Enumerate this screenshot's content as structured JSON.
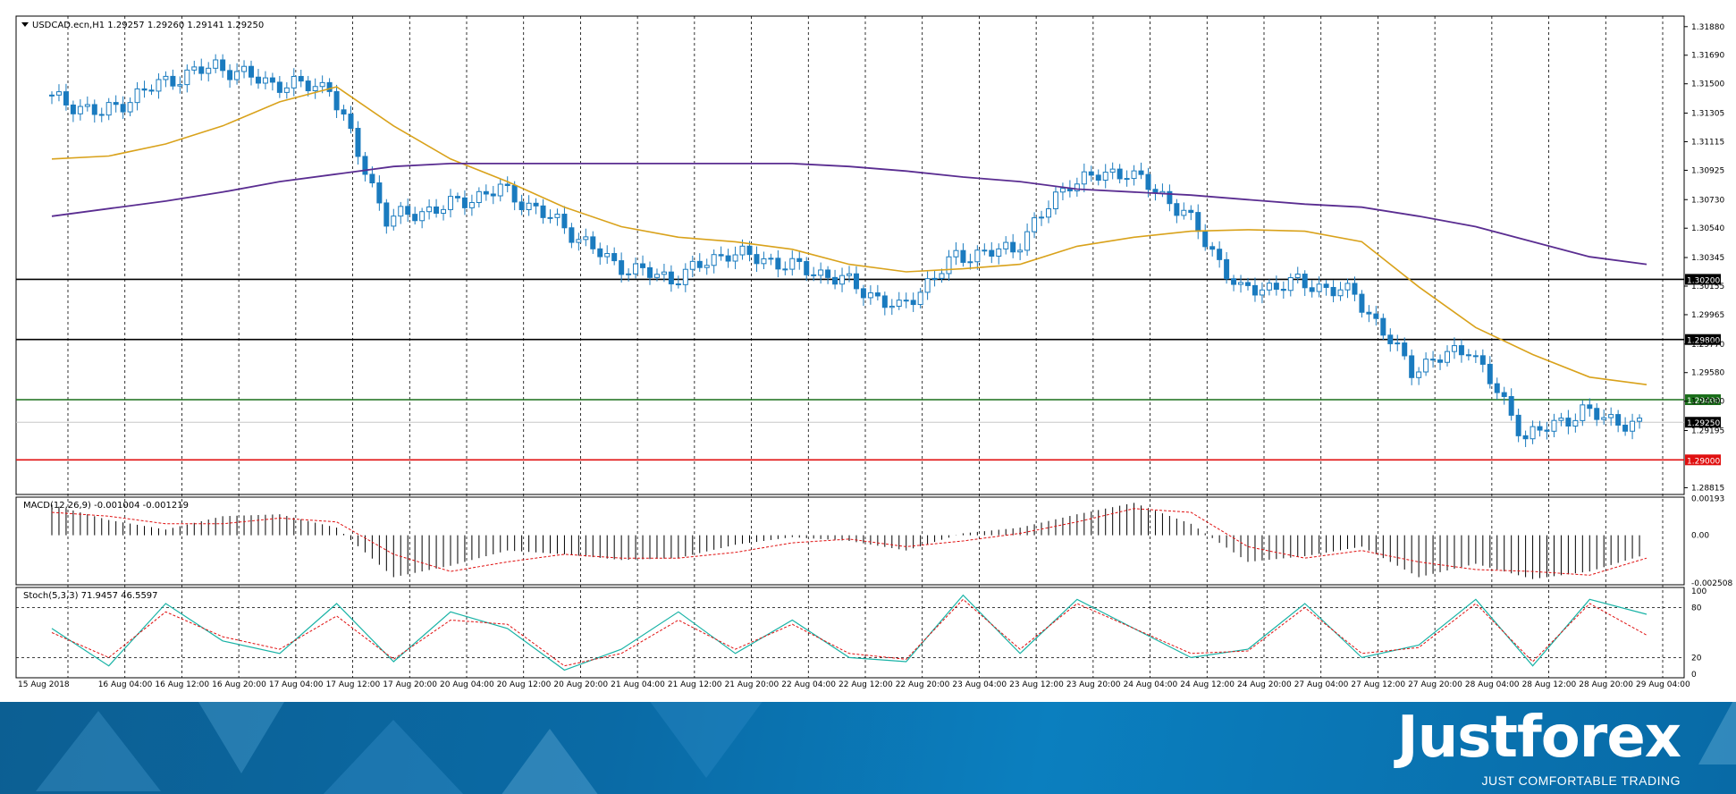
{
  "header": {
    "symbol_line": "USDCAD.ecn,H1  1.29257 1.29260 1.29141 1.29250",
    "macd_line": "MACD(12,26,9) -0.001004 -0.001219",
    "stoch_line": "Stoch(5,3,3) 71.9457 46.5597"
  },
  "price_axis": {
    "ticks": [
      "1.31880",
      "1.31690",
      "1.31500",
      "1.31305",
      "1.31115",
      "1.30925",
      "1.30730",
      "1.30540",
      "1.30345",
      "1.30155",
      "1.29965",
      "1.29770",
      "1.29580",
      "1.29390",
      "1.29195",
      "1.28815"
    ]
  },
  "macd_axis": {
    "ticks": [
      "0.00193",
      "0.00",
      "-0.002508"
    ]
  },
  "stoch_axis": {
    "ticks": [
      "100",
      "80",
      "20",
      "0"
    ]
  },
  "time_axis": {
    "labels": [
      "15 Aug 2018",
      "16 Aug 04:00",
      "16 Aug 12:00",
      "16 Aug 20:00",
      "17 Aug 04:00",
      "17 Aug 12:00",
      "17 Aug 20:00",
      "20 Aug 04:00",
      "20 Aug 12:00",
      "20 Aug 20:00",
      "21 Aug 04:00",
      "21 Aug 12:00",
      "21 Aug 20:00",
      "22 Aug 04:00",
      "22 Aug 12:00",
      "22 Aug 20:00",
      "23 Aug 04:00",
      "23 Aug 12:00",
      "23 Aug 20:00",
      "24 Aug 04:00",
      "24 Aug 12:00",
      "24 Aug 20:00",
      "27 Aug 04:00",
      "27 Aug 12:00",
      "27 Aug 20:00",
      "28 Aug 04:00",
      "28 Aug 12:00",
      "28 Aug 20:00",
      "29 Aug 04:00"
    ]
  },
  "levels": [
    {
      "label": "1.30200",
      "price": 1.302,
      "color": "#000000",
      "tag_bg": "#000000"
    },
    {
      "label": "1.29800",
      "price": 1.298,
      "color": "#000000",
      "tag_bg": "#000000"
    },
    {
      "label": "1.29400",
      "price": 1.294,
      "color": "#1a6e1a",
      "tag_bg": "#1a6e1a"
    },
    {
      "label": "1.29250",
      "price": 1.2925,
      "color": "#c8c8c8",
      "tag_bg": "#000000"
    },
    {
      "label": "1.29000",
      "price": 1.29,
      "color": "#e01010",
      "tag_bg": "#e01010"
    }
  ],
  "brand": {
    "name": "Justforex",
    "tagline": "JUST COMFORTABLE TRADING"
  },
  "colors": {
    "candle": "#1a7bbf",
    "ma_fast": "#d9a21b",
    "ma_slow": "#5a2d91",
    "stoch_main": "#19b3a6",
    "signal": "#e01010",
    "grid": "#000000"
  },
  "chart_data": [
    {
      "type": "line",
      "title": "USDCAD.ecn,H1",
      "subtitle": "1.29257 1.29260 1.29141 1.29250",
      "xlabel": "",
      "ylabel": "",
      "ylim": [
        1.2877,
        1.3195
      ],
      "grid": true,
      "x": [
        "15 Aug 2018",
        "16 Aug 04:00",
        "16 Aug 12:00",
        "16 Aug 20:00",
        "17 Aug 04:00",
        "17 Aug 12:00",
        "17 Aug 20:00",
        "20 Aug 04:00",
        "20 Aug 12:00",
        "20 Aug 20:00",
        "21 Aug 04:00",
        "21 Aug 12:00",
        "21 Aug 20:00",
        "22 Aug 04:00",
        "22 Aug 12:00",
        "22 Aug 20:00",
        "23 Aug 04:00",
        "23 Aug 12:00",
        "23 Aug 20:00",
        "24 Aug 04:00",
        "24 Aug 12:00",
        "24 Aug 20:00",
        "27 Aug 04:00",
        "27 Aug 12:00",
        "27 Aug 20:00",
        "28 Aug 04:00",
        "28 Aug 12:00",
        "28 Aug 20:00",
        "29 Aug 04:00"
      ],
      "series": [
        {
          "values": [
            1.3142,
            1.313,
            1.315,
            1.3162,
            1.315,
            1.3148,
            1.306,
            1.3068,
            1.308,
            1.3058,
            1.303,
            1.302,
            1.3038,
            1.303,
            1.302,
            1.3,
            1.3035,
            1.304,
            1.3085,
            1.3092,
            1.3065,
            1.3012,
            1.3018,
            1.301,
            1.296,
            1.2975,
            1.2915,
            1.2932,
            1.2922
          ]
        },
        {
          "values": [
            1.31,
            1.3102,
            1.311,
            1.3122,
            1.3138,
            1.3148,
            1.3122,
            1.31,
            1.3085,
            1.3068,
            1.3055,
            1.3048,
            1.3045,
            1.304,
            1.303,
            1.3025,
            1.3027,
            1.303,
            1.3042,
            1.3048,
            1.3052,
            1.3053,
            1.3052,
            1.3045,
            1.3015,
            1.2988,
            1.297,
            1.2955,
            1.295
          ]
        },
        {
          "values": [
            1.3062,
            1.3067,
            1.3072,
            1.3078,
            1.3085,
            1.309,
            1.3095,
            1.3097,
            1.3097,
            1.3097,
            1.3097,
            1.3097,
            1.3097,
            1.3097,
            1.3095,
            1.3092,
            1.3088,
            1.3085,
            1.308,
            1.3078,
            1.3076,
            1.3073,
            1.307,
            1.3068,
            1.3062,
            1.3055,
            1.3045,
            1.3035,
            1.303
          ]
        }
      ]
    },
    {
      "type": "bar",
      "title": "MACD(12,26,9)",
      "subtitle": "-0.001004 -0.001219",
      "ylim": [
        -0.0026,
        0.002
      ],
      "categories": [
        "15 Aug 2018",
        "16 Aug 04:00",
        "16 Aug 12:00",
        "16 Aug 20:00",
        "17 Aug 04:00",
        "17 Aug 12:00",
        "17 Aug 20:00",
        "20 Aug 04:00",
        "20 Aug 12:00",
        "20 Aug 20:00",
        "21 Aug 04:00",
        "21 Aug 12:00",
        "21 Aug 20:00",
        "22 Aug 04:00",
        "22 Aug 12:00",
        "22 Aug 20:00",
        "23 Aug 04:00",
        "23 Aug 12:00",
        "23 Aug 20:00",
        "24 Aug 04:00",
        "24 Aug 12:00",
        "24 Aug 20:00",
        "27 Aug 04:00",
        "27 Aug 12:00",
        "27 Aug 20:00",
        "28 Aug 04:00",
        "28 Aug 12:00",
        "28 Aug 20:00",
        "29 Aug 04:00"
      ],
      "series": [
        {
          "values": [
            0.0016,
            0.0008,
            0.0003,
            0.001,
            0.0011,
            0.0004,
            -0.0022,
            -0.0016,
            -0.0008,
            -0.001,
            -0.0013,
            -0.0012,
            -0.0005,
            -0.0001,
            -0.0003,
            -0.0008,
            0.0001,
            0.0004,
            0.0011,
            0.0017,
            0.0006,
            -0.0014,
            -0.0011,
            -0.0006,
            -0.0022,
            -0.0015,
            -0.0023,
            -0.0019,
            -0.001
          ]
        },
        {
          "values": [
            0.0012,
            0.001,
            0.0006,
            0.0006,
            0.0009,
            0.0007,
            -0.001,
            -0.0019,
            -0.0014,
            -0.001,
            -0.0012,
            -0.0012,
            -0.0009,
            -0.0004,
            -0.0002,
            -0.0006,
            -0.0003,
            0.0001,
            0.0007,
            0.0014,
            0.0012,
            -0.0006,
            -0.0012,
            -0.0008,
            -0.0014,
            -0.0018,
            -0.0019,
            -0.0021,
            -0.0012
          ]
        }
      ]
    },
    {
      "type": "line",
      "title": "Stoch(5,3,3)",
      "subtitle": "71.9457 46.5597",
      "ylim": [
        0,
        100
      ],
      "x": [
        "15 Aug 2018",
        "16 Aug 04:00",
        "16 Aug 12:00",
        "16 Aug 20:00",
        "17 Aug 04:00",
        "17 Aug 12:00",
        "17 Aug 20:00",
        "20 Aug 04:00",
        "20 Aug 12:00",
        "20 Aug 20:00",
        "21 Aug 04:00",
        "21 Aug 12:00",
        "21 Aug 20:00",
        "22 Aug 04:00",
        "22 Aug 12:00",
        "22 Aug 20:00",
        "23 Aug 04:00",
        "23 Aug 12:00",
        "23 Aug 20:00",
        "24 Aug 04:00",
        "24 Aug 12:00",
        "24 Aug 20:00",
        "27 Aug 04:00",
        "27 Aug 12:00",
        "27 Aug 20:00",
        "28 Aug 04:00",
        "28 Aug 12:00",
        "28 Aug 20:00",
        "29 Aug 04:00"
      ],
      "series": [
        {
          "values": [
            55,
            10,
            85,
            40,
            25,
            85,
            15,
            75,
            55,
            5,
            30,
            75,
            25,
            65,
            20,
            15,
            95,
            25,
            90,
            55,
            20,
            30,
            85,
            20,
            35,
            90,
            10,
            90,
            72
          ]
        },
        {
          "values": [
            50,
            20,
            75,
            45,
            30,
            70,
            18,
            65,
            60,
            10,
            25,
            65,
            30,
            60,
            25,
            18,
            90,
            30,
            85,
            55,
            25,
            28,
            80,
            25,
            32,
            85,
            15,
            85,
            47
          ]
        }
      ]
    }
  ]
}
